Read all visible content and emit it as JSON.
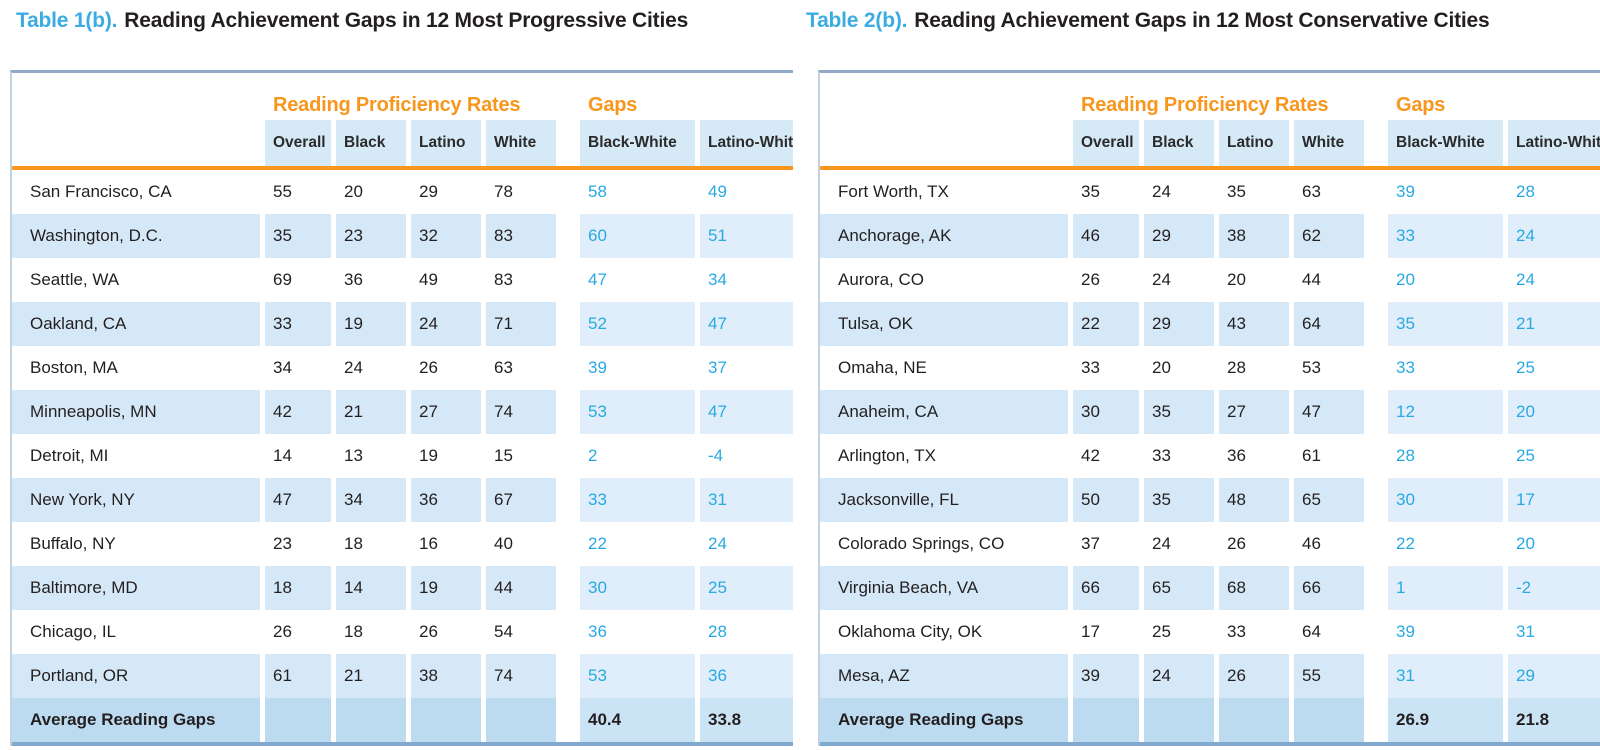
{
  "colors": {
    "table_number_cyan": "#3BACE3",
    "group_header_orange": "#F8961D",
    "gap_value_cyan": "#29A9E1",
    "row_stripe_blue": "#D5E8F7",
    "average_row_blue": "#BCDBF0",
    "top_border_blue": "#92AACA",
    "bottom_border_blue": "#7FA9CD",
    "text_dark": "#231F20"
  },
  "tables": [
    {
      "title_prefix": "Table 1(b).",
      "title_main": "Reading Achievement Gaps in 12 Most Progressive Cities",
      "group_rates": "Reading Proficiency Rates",
      "group_gaps": "Gaps",
      "columns": [
        "Overall",
        "Black",
        "Latino",
        "White",
        "Black-White",
        "Latino-White"
      ],
      "rows": [
        {
          "city": "San Francisco, CA",
          "rates": [
            55,
            20,
            29,
            78
          ],
          "gaps": [
            58,
            49
          ]
        },
        {
          "city": "Washington, D.C.",
          "rates": [
            35,
            23,
            32,
            83
          ],
          "gaps": [
            60,
            51
          ]
        },
        {
          "city": "Seattle, WA",
          "rates": [
            69,
            36,
            49,
            83
          ],
          "gaps": [
            47,
            34
          ]
        },
        {
          "city": "Oakland, CA",
          "rates": [
            33,
            19,
            24,
            71
          ],
          "gaps": [
            52,
            47
          ]
        },
        {
          "city": "Boston, MA",
          "rates": [
            34,
            24,
            26,
            63
          ],
          "gaps": [
            39,
            37
          ]
        },
        {
          "city": "Minneapolis, MN",
          "rates": [
            42,
            21,
            27,
            74
          ],
          "gaps": [
            53,
            47
          ]
        },
        {
          "city": "Detroit, MI",
          "rates": [
            14,
            13,
            19,
            15
          ],
          "gaps": [
            2,
            -4
          ]
        },
        {
          "city": "New York, NY",
          "rates": [
            47,
            34,
            36,
            67
          ],
          "gaps": [
            33,
            31
          ]
        },
        {
          "city": "Buffalo, NY",
          "rates": [
            23,
            18,
            16,
            40
          ],
          "gaps": [
            22,
            24
          ]
        },
        {
          "city": "Baltimore, MD",
          "rates": [
            18,
            14,
            19,
            44
          ],
          "gaps": [
            30,
            25
          ]
        },
        {
          "city": "Chicago, IL",
          "rates": [
            26,
            18,
            26,
            54
          ],
          "gaps": [
            36,
            28
          ]
        },
        {
          "city": "Portland, OR",
          "rates": [
            61,
            21,
            38,
            74
          ],
          "gaps": [
            53,
            36
          ]
        }
      ],
      "footer": {
        "label": "Average Reading Gaps",
        "gaps": [
          "40.4",
          "33.8"
        ]
      }
    },
    {
      "title_prefix": "Table 2(b).",
      "title_main": "Reading Achievement Gaps in 12 Most Conservative Cities",
      "group_rates": "Reading Proficiency Rates",
      "group_gaps": "Gaps",
      "columns": [
        "Overall",
        "Black",
        "Latino",
        "White",
        "Black-White",
        "Latino-White"
      ],
      "rows": [
        {
          "city": "Fort Worth, TX",
          "rates": [
            35,
            24,
            35,
            63
          ],
          "gaps": [
            39,
            28
          ]
        },
        {
          "city": "Anchorage, AK",
          "rates": [
            46,
            29,
            38,
            62
          ],
          "gaps": [
            33,
            24
          ]
        },
        {
          "city": "Aurora, CO",
          "rates": [
            26,
            24,
            20,
            44
          ],
          "gaps": [
            20,
            24
          ]
        },
        {
          "city": "Tulsa, OK",
          "rates": [
            22,
            29,
            43,
            64
          ],
          "gaps": [
            35,
            21
          ]
        },
        {
          "city": "Omaha, NE",
          "rates": [
            33,
            20,
            28,
            53
          ],
          "gaps": [
            33,
            25
          ]
        },
        {
          "city": "Anaheim, CA",
          "rates": [
            30,
            35,
            27,
            47
          ],
          "gaps": [
            12,
            20
          ]
        },
        {
          "city": "Arlington, TX",
          "rates": [
            42,
            33,
            36,
            61
          ],
          "gaps": [
            28,
            25
          ]
        },
        {
          "city": "Jacksonville, FL",
          "rates": [
            50,
            35,
            48,
            65
          ],
          "gaps": [
            30,
            17
          ]
        },
        {
          "city": "Colorado Springs, CO",
          "rates": [
            37,
            24,
            26,
            46
          ],
          "gaps": [
            22,
            20
          ]
        },
        {
          "city": "Virginia Beach, VA",
          "rates": [
            66,
            65,
            68,
            66
          ],
          "gaps": [
            1,
            -2
          ]
        },
        {
          "city": "Oklahoma City, OK",
          "rates": [
            17,
            25,
            33,
            64
          ],
          "gaps": [
            39,
            31
          ]
        },
        {
          "city": "Mesa, AZ",
          "rates": [
            39,
            24,
            26,
            55
          ],
          "gaps": [
            31,
            29
          ]
        }
      ],
      "footer": {
        "label": "Average Reading Gaps",
        "gaps": [
          "26.9",
          "21.8"
        ]
      }
    }
  ]
}
